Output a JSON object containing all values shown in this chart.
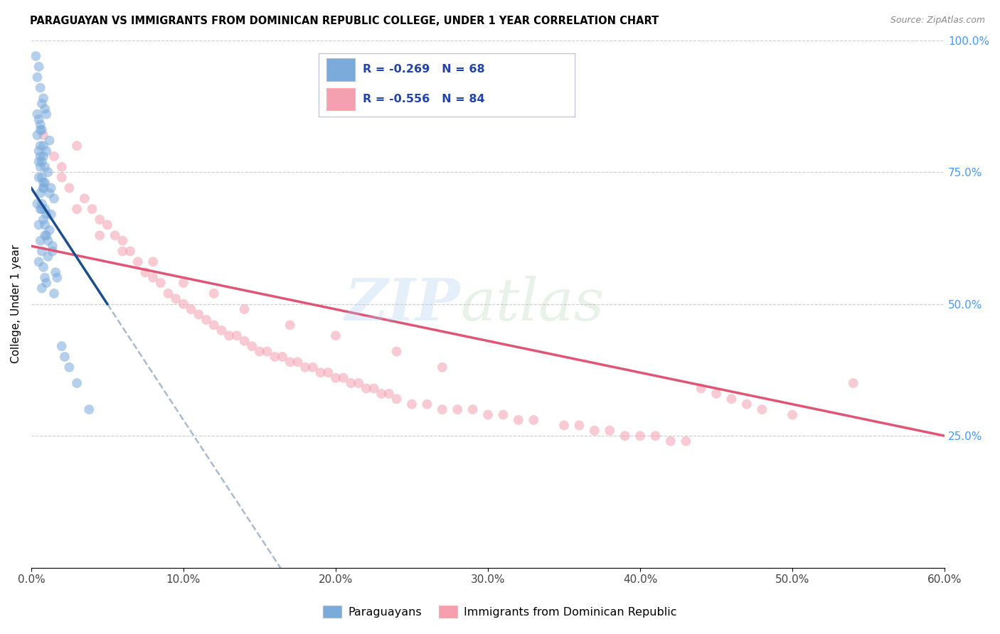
{
  "title": "PARAGUAYAN VS IMMIGRANTS FROM DOMINICAN REPUBLIC COLLEGE, UNDER 1 YEAR CORRELATION CHART",
  "source": "Source: ZipAtlas.com",
  "ylabel": "College, Under 1 year",
  "xlabel_vals": [
    0.0,
    10.0,
    20.0,
    30.0,
    40.0,
    50.0,
    60.0
  ],
  "ylabel_right_vals": [
    25.0,
    50.0,
    75.0,
    100.0
  ],
  "xlim": [
    0.0,
    60.0
  ],
  "ylim": [
    0.0,
    100.0
  ],
  "blue_R": -0.269,
  "blue_N": 68,
  "pink_R": -0.556,
  "pink_N": 84,
  "blue_color": "#7AABDB",
  "pink_color": "#F4A0B0",
  "blue_line_color": "#1A4E8C",
  "pink_line_color": "#E05575",
  "watermark_zip": "ZIP",
  "watermark_atlas": "atlas",
  "paraguayans_label": "Paraguayans",
  "immigrants_label": "Immigrants from Dominican Republic",
  "blue_scatter_x": [
    0.3,
    0.5,
    0.4,
    0.6,
    0.8,
    0.7,
    0.9,
    1.0,
    0.5,
    0.6,
    0.7,
    0.4,
    1.2,
    0.8,
    1.0,
    0.6,
    0.5,
    0.9,
    1.1,
    0.7,
    0.8,
    1.3,
    0.6,
    1.5,
    0.4,
    0.7,
    1.0,
    0.8,
    0.5,
    1.2,
    0.9,
    0.6,
    1.4,
    0.7,
    1.1,
    0.5,
    0.8,
    1.6,
    0.9,
    1.0,
    0.7,
    0.6,
    1.3,
    0.8,
    1.2,
    0.5,
    0.9,
    1.7,
    0.6,
    0.8,
    1.0,
    0.7,
    1.4,
    0.9,
    0.6,
    1.1,
    0.8,
    2.0,
    1.5,
    2.5,
    0.5,
    3.0,
    0.7,
    2.2,
    0.9,
    3.8,
    0.6,
    0.4
  ],
  "blue_scatter_y": [
    97.0,
    95.0,
    93.0,
    91.0,
    89.0,
    88.0,
    87.0,
    86.0,
    85.0,
    84.0,
    83.0,
    82.0,
    81.0,
    80.0,
    79.0,
    78.0,
    77.0,
    76.0,
    75.0,
    74.0,
    73.0,
    72.0,
    71.0,
    70.0,
    69.0,
    68.0,
    67.0,
    66.0,
    65.0,
    64.0,
    63.0,
    62.0,
    61.0,
    60.0,
    59.0,
    58.0,
    57.0,
    56.0,
    55.0,
    54.0,
    53.0,
    68.0,
    67.0,
    72.0,
    71.0,
    74.0,
    73.0,
    55.0,
    76.0,
    78.0,
    63.0,
    69.0,
    60.0,
    65.0,
    80.0,
    62.0,
    72.0,
    42.0,
    52.0,
    38.0,
    79.0,
    35.0,
    77.0,
    40.0,
    68.0,
    30.0,
    83.0,
    86.0
  ],
  "pink_scatter_x": [
    0.8,
    1.5,
    2.0,
    2.5,
    3.0,
    3.5,
    4.0,
    4.5,
    5.0,
    5.5,
    6.0,
    6.5,
    7.0,
    7.5,
    8.0,
    8.5,
    9.0,
    9.5,
    10.0,
    10.5,
    11.0,
    11.5,
    12.0,
    12.5,
    13.0,
    13.5,
    14.0,
    14.5,
    15.0,
    15.5,
    16.0,
    16.5,
    17.0,
    17.5,
    18.0,
    18.5,
    19.0,
    19.5,
    20.0,
    20.5,
    21.0,
    21.5,
    22.0,
    22.5,
    23.0,
    23.5,
    24.0,
    25.0,
    26.0,
    27.0,
    28.0,
    29.0,
    30.0,
    31.0,
    32.0,
    33.0,
    35.0,
    36.0,
    37.0,
    38.0,
    39.0,
    40.0,
    41.0,
    42.0,
    43.0,
    44.0,
    45.0,
    46.0,
    47.0,
    48.0,
    50.0,
    2.0,
    3.0,
    4.5,
    6.0,
    8.0,
    10.0,
    12.0,
    14.0,
    17.0,
    20.0,
    24.0,
    27.0,
    54.0
  ],
  "pink_scatter_y": [
    82.0,
    78.0,
    76.0,
    72.0,
    80.0,
    70.0,
    68.0,
    66.0,
    65.0,
    63.0,
    62.0,
    60.0,
    58.0,
    56.0,
    55.0,
    54.0,
    52.0,
    51.0,
    50.0,
    49.0,
    48.0,
    47.0,
    46.0,
    45.0,
    44.0,
    44.0,
    43.0,
    42.0,
    41.0,
    41.0,
    40.0,
    40.0,
    39.0,
    39.0,
    38.0,
    38.0,
    37.0,
    37.0,
    36.0,
    36.0,
    35.0,
    35.0,
    34.0,
    34.0,
    33.0,
    33.0,
    32.0,
    31.0,
    31.0,
    30.0,
    30.0,
    30.0,
    29.0,
    29.0,
    28.0,
    28.0,
    27.0,
    27.0,
    26.0,
    26.0,
    25.0,
    25.0,
    25.0,
    24.0,
    24.0,
    34.0,
    33.0,
    32.0,
    31.0,
    30.0,
    29.0,
    74.0,
    68.0,
    63.0,
    60.0,
    58.0,
    54.0,
    52.0,
    49.0,
    46.0,
    44.0,
    41.0,
    38.0,
    35.0
  ],
  "blue_trend_x0": 0.0,
  "blue_trend_y0": 72.0,
  "blue_trend_x1": 5.0,
  "blue_trend_y1": 50.0,
  "pink_trend_x0": 0.0,
  "pink_trend_y0": 61.0,
  "pink_trend_x1": 60.0,
  "pink_trend_y1": 25.0
}
